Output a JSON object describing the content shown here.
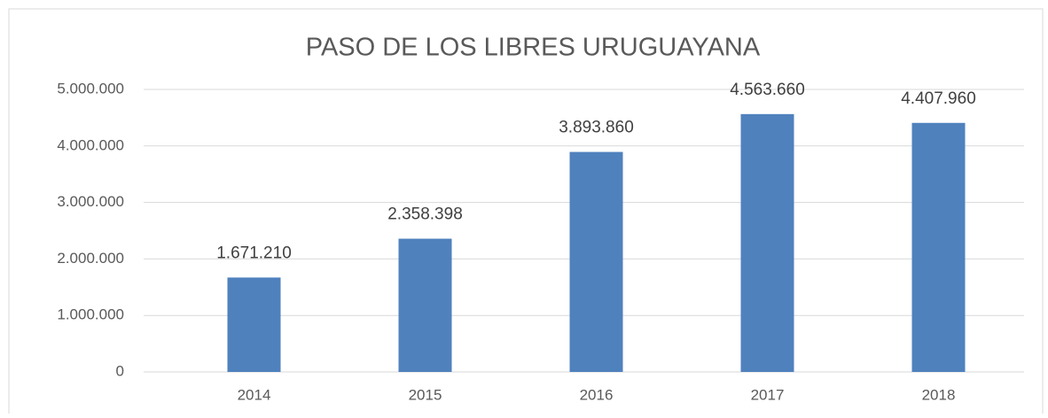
{
  "chart_data": {
    "type": "bar",
    "title": "PASO DE LOS LIBRES URUGUAYANA",
    "categories": [
      "2014",
      "2015",
      "2016",
      "2017",
      "2018"
    ],
    "values": [
      1671210,
      2358398,
      3893860,
      4563660,
      4407960
    ],
    "value_labels": [
      "1.671.210",
      "2.358.398",
      "3.893.860",
      "4.563.660",
      "4.407.960"
    ],
    "color": "#4f81bd",
    "ylim": [
      0,
      5000000
    ],
    "yticks": [
      0,
      {
        "value": 1000000,
        "label": "1.000.000"
      },
      {
        "value": 2000000,
        "label": "2.000.000"
      },
      {
        "value": 3000000,
        "label": "3.000.000"
      },
      {
        "value": 4000000,
        "label": "4.000.000"
      },
      {
        "value": 5000000,
        "label": "5.000.000"
      }
    ],
    "grid": true
  }
}
